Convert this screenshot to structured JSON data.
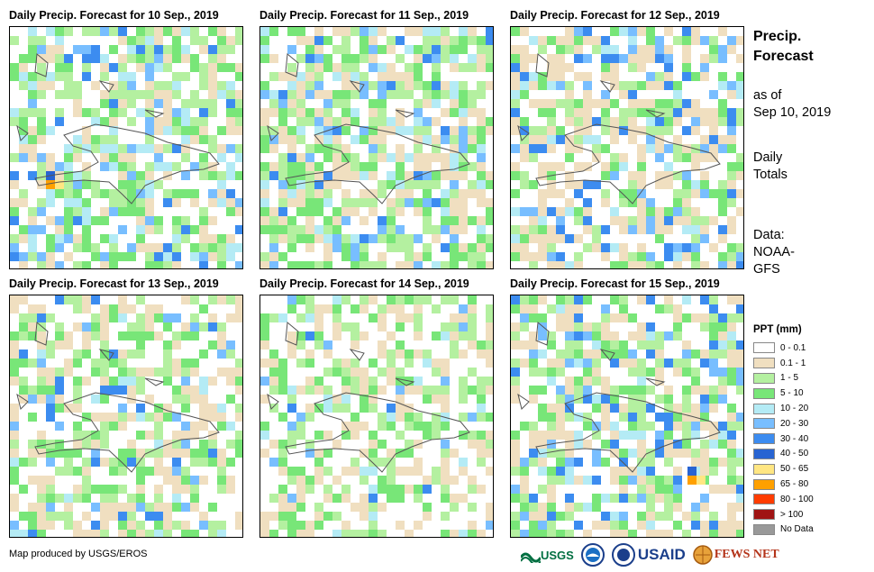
{
  "panels": [
    {
      "title": "Daily Precip. Forecast for 10 Sep., 2019"
    },
    {
      "title": "Daily Precip. Forecast for 11 Sep., 2019"
    },
    {
      "title": "Daily Precip. Forecast for 12 Sep., 2019"
    },
    {
      "title": "Daily Precip. Forecast for 13 Sep., 2019"
    },
    {
      "title": "Daily Precip. Forecast for 14 Sep., 2019"
    },
    {
      "title": "Daily Precip. Forecast for 15 Sep., 2019"
    }
  ],
  "sidebar": {
    "title_line1": "Precip.",
    "title_line2": "Forecast",
    "asof_line1": "as of",
    "asof_line2": "Sep 10, 2019",
    "daily_line1": "Daily",
    "daily_line2": "Totals",
    "data_line1": "Data:",
    "data_line2": "NOAA-",
    "data_line3": "GFS"
  },
  "legend": {
    "title": "PPT (mm)",
    "items": [
      {
        "label": "0 - 0.1",
        "color": "#ffffff"
      },
      {
        "label": "0.1 - 1",
        "color": "#f0dfc0"
      },
      {
        "label": "1 - 5",
        "color": "#b4f0a0"
      },
      {
        "label": "5 - 10",
        "color": "#78e678"
      },
      {
        "label": "10 - 20",
        "color": "#b4ebf5"
      },
      {
        "label": "20 - 30",
        "color": "#78beff"
      },
      {
        "label": "30 - 40",
        "color": "#3c8cf0"
      },
      {
        "label": "40 - 50",
        "color": "#2864d2"
      },
      {
        "label": "50 - 65",
        "color": "#ffe682"
      },
      {
        "label": "65 - 80",
        "color": "#ffa000"
      },
      {
        "label": "80 - 100",
        "color": "#ff3c00"
      },
      {
        "label": "> 100",
        "color": "#a01414"
      },
      {
        "label": "No Data",
        "color": "#999999"
      }
    ]
  },
  "footer": {
    "credit": "Map produced by USGS/EROS"
  },
  "logos": {
    "usgs": "USGS",
    "usaid": "USAID",
    "fewsnet": "FEWS NET"
  }
}
